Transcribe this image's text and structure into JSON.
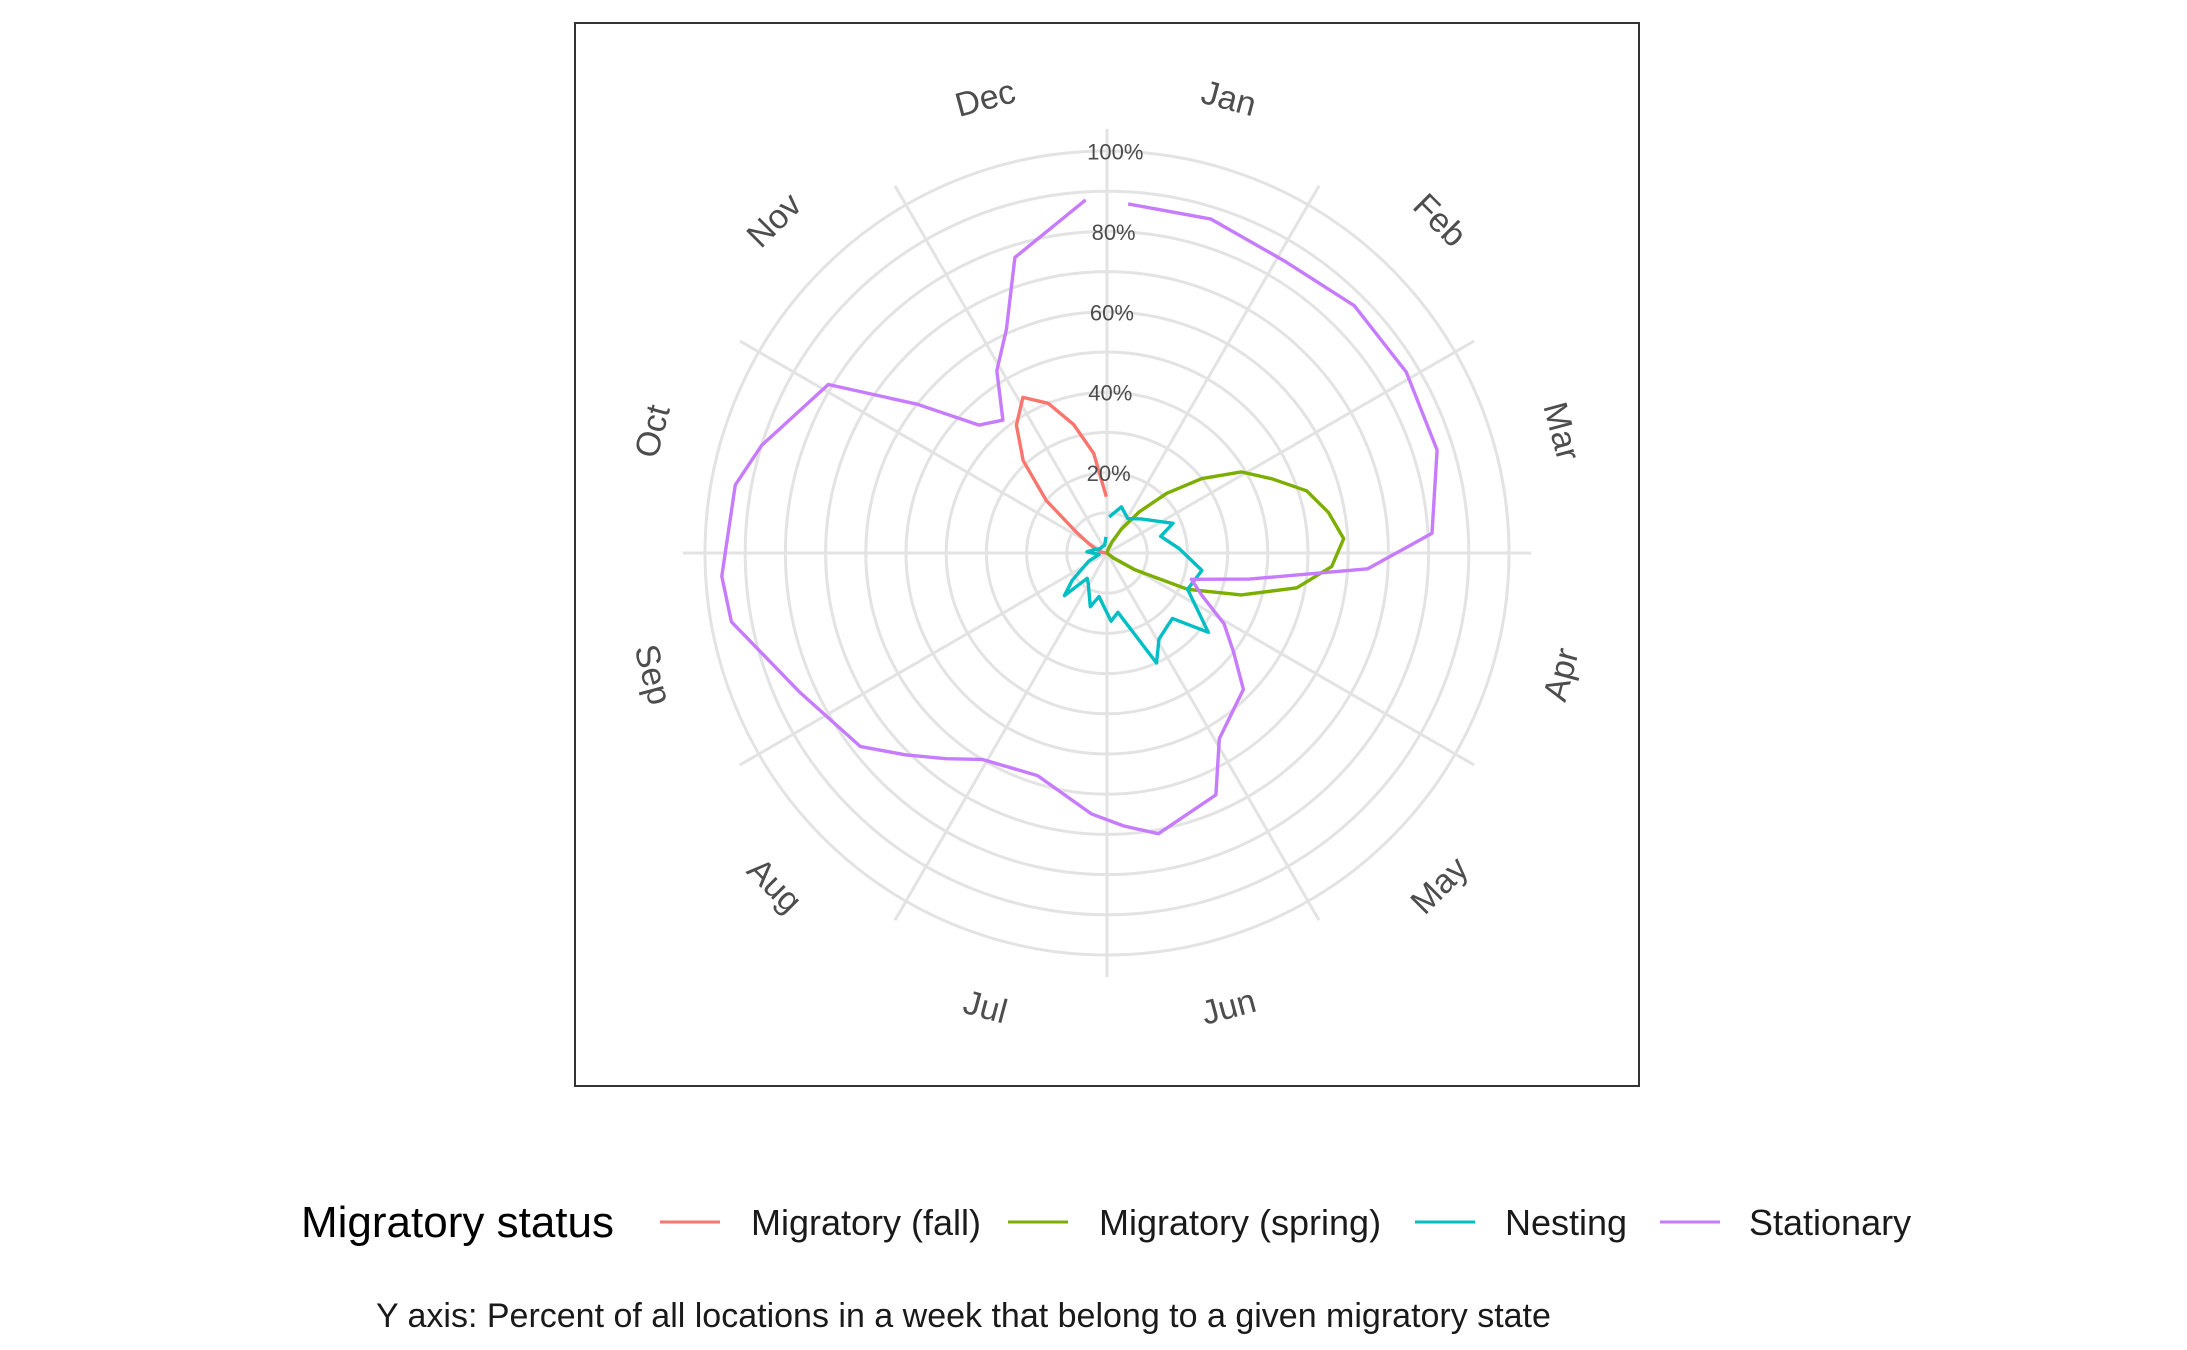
{
  "chart_data": {
    "type": "line",
    "coord": "polar",
    "theta": "week of year",
    "month_labels": [
      "Jan",
      "Feb",
      "Mar",
      "Apr",
      "May",
      "Jun",
      "Jul",
      "Aug",
      "Sep",
      "Oct",
      "Nov",
      "Dec"
    ],
    "r_ticks": [
      "20%",
      "40%",
      "60%",
      "80%",
      "100%"
    ],
    "r_tick_values": [
      20,
      40,
      60,
      80,
      100
    ],
    "rlim": [
      0,
      100
    ],
    "grid": true,
    "legend_position": "bottom",
    "legend_title": "Migratory status",
    "caption": "Y axis: Percent of all locations in a week that belong to a given migratory state",
    "series": [
      {
        "name": "Migratory (fall)",
        "color": "#F8766D",
        "points": [
          [
            38.9,
            0
          ],
          [
            39.9,
            1
          ],
          [
            40.9,
            2
          ],
          [
            41.9,
            3
          ],
          [
            42.9,
            5
          ],
          [
            43.9,
            9
          ],
          [
            44.9,
            20
          ],
          [
            45.9,
            31
          ],
          [
            46.9,
            39
          ],
          [
            47.9,
            44
          ],
          [
            48.9,
            40
          ],
          [
            49.9,
            33
          ],
          [
            50.9,
            25
          ],
          [
            51.9,
            14
          ]
        ]
      },
      {
        "name": "Migratory (spring)",
        "color": "#7CAE00",
        "points": [
          [
            1.5,
            0
          ],
          [
            2.5,
            1
          ],
          [
            3.5,
            3
          ],
          [
            4.5,
            7
          ],
          [
            5.5,
            13
          ],
          [
            6.5,
            21
          ],
          [
            7.5,
            30
          ],
          [
            8.5,
            39
          ],
          [
            9.5,
            45
          ],
          [
            10.5,
            52
          ],
          [
            11.5,
            56
          ],
          [
            12.5,
            59
          ],
          [
            13.5,
            56
          ],
          [
            14.5,
            48
          ],
          [
            15.5,
            35
          ],
          [
            16.5,
            22
          ],
          [
            17.5,
            8
          ],
          [
            18.5,
            2
          ],
          [
            19.5,
            0
          ]
        ]
      },
      {
        "name": "Nesting",
        "color": "#00BFC4",
        "points": [
          [
            0.5,
            9
          ],
          [
            2.5,
            12
          ],
          [
            4.5,
            10
          ],
          [
            6.5,
            12
          ],
          [
            9.5,
            18
          ],
          [
            10.5,
            14
          ],
          [
            12.5,
            18
          ],
          [
            14.5,
            24
          ],
          [
            16.5,
            22
          ],
          [
            18.5,
            32
          ],
          [
            19.5,
            23
          ],
          [
            21.5,
            25
          ],
          [
            22.5,
            30
          ],
          [
            24.5,
            15
          ],
          [
            25.5,
            17
          ],
          [
            27.5,
            11
          ],
          [
            28.5,
            14
          ],
          [
            30.5,
            9
          ],
          [
            31.5,
            8
          ],
          [
            32.5,
            15
          ],
          [
            33.5,
            11
          ],
          [
            35.5,
            5
          ],
          [
            37.5,
            2
          ],
          [
            39.5,
            5
          ],
          [
            41.5,
            3
          ],
          [
            43.5,
            2
          ],
          [
            46.5,
            2
          ],
          [
            49.5,
            2
          ],
          [
            51.5,
            4
          ]
        ]
      },
      {
        "name": "Stationary",
        "color": "#C77CFF",
        "points": [
          [
            0.5,
            87
          ],
          [
            2.5,
            87
          ],
          [
            4.5,
            85
          ],
          [
            6.5,
            87
          ],
          [
            8.5,
            87
          ],
          [
            10.5,
            86
          ],
          [
            12.5,
            81
          ],
          [
            13.5,
            65
          ],
          [
            14.5,
            36
          ],
          [
            15.5,
            22
          ],
          [
            16.5,
            26
          ],
          [
            17.5,
            34
          ],
          [
            18.5,
            40
          ],
          [
            19.5,
            48
          ],
          [
            21.5,
            54
          ],
          [
            22.5,
            66
          ],
          [
            24.5,
            71
          ],
          [
            25.5,
            68
          ],
          [
            26.5,
            65
          ],
          [
            28.5,
            58
          ],
          [
            30.5,
            60
          ],
          [
            31.5,
            65
          ],
          [
            32.5,
            71
          ],
          [
            33.5,
            78
          ],
          [
            35.5,
            84
          ],
          [
            37.5,
            95
          ],
          [
            38.5,
            96
          ],
          [
            40.5,
            94
          ],
          [
            41.5,
            90
          ],
          [
            43.5,
            81
          ],
          [
            44.5,
            60
          ],
          [
            45.5,
            45
          ],
          [
            46.5,
            42
          ],
          [
            47.5,
            53
          ],
          [
            48.5,
            61
          ],
          [
            49.5,
            77
          ],
          [
            51.5,
            88
          ]
        ]
      }
    ]
  }
}
